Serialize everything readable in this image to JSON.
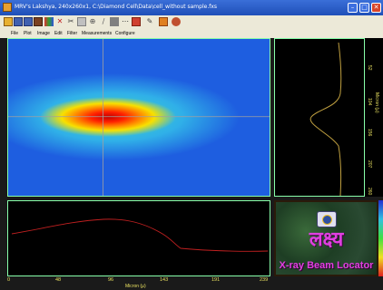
{
  "window": {
    "title": "MRV's Lakshya, 240x260x1, C:\\Diamond Cell\\Data\\cell_without sample.fxs",
    "minimize": "–",
    "maximize": "□",
    "close": "✕"
  },
  "toolbar": {
    "icons": [
      "open-icon",
      "save-icon",
      "save-as-icon",
      "print-icon",
      "color-icon",
      "delete-icon",
      "cut-icon",
      "palette-icon",
      "zoom-in-icon",
      "line-icon",
      "stats-icon",
      "measure-icon",
      "pin-icon",
      "pencil-icon",
      "crop-icon",
      "globe-icon"
    ]
  },
  "menu": {
    "items": [
      "File",
      "Plot",
      "Image",
      "Edit",
      "Filter",
      "Measurements",
      "Configure"
    ]
  },
  "colors": {
    "workspace": "#1a1a1a",
    "profile_line": "#c0a040",
    "axis_text": "#e8e060",
    "crosshair": "#a0a0a0"
  },
  "heatmap": {
    "crosshair_x_fraction": 0.36,
    "crosshair_y_fraction": 0.49
  },
  "vertical_axis": {
    "ticks": [
      "52",
      "104",
      "156",
      "207",
      "260"
    ],
    "title": "Micron (µ)"
  },
  "horizontal_axis": {
    "ticks": [
      "0",
      "48",
      "96",
      "143",
      "191",
      "239"
    ],
    "title": "Micron (µ)"
  },
  "logo": {
    "script_text": "लक्ष्य",
    "caption": "X-ray Beam Locator"
  }
}
